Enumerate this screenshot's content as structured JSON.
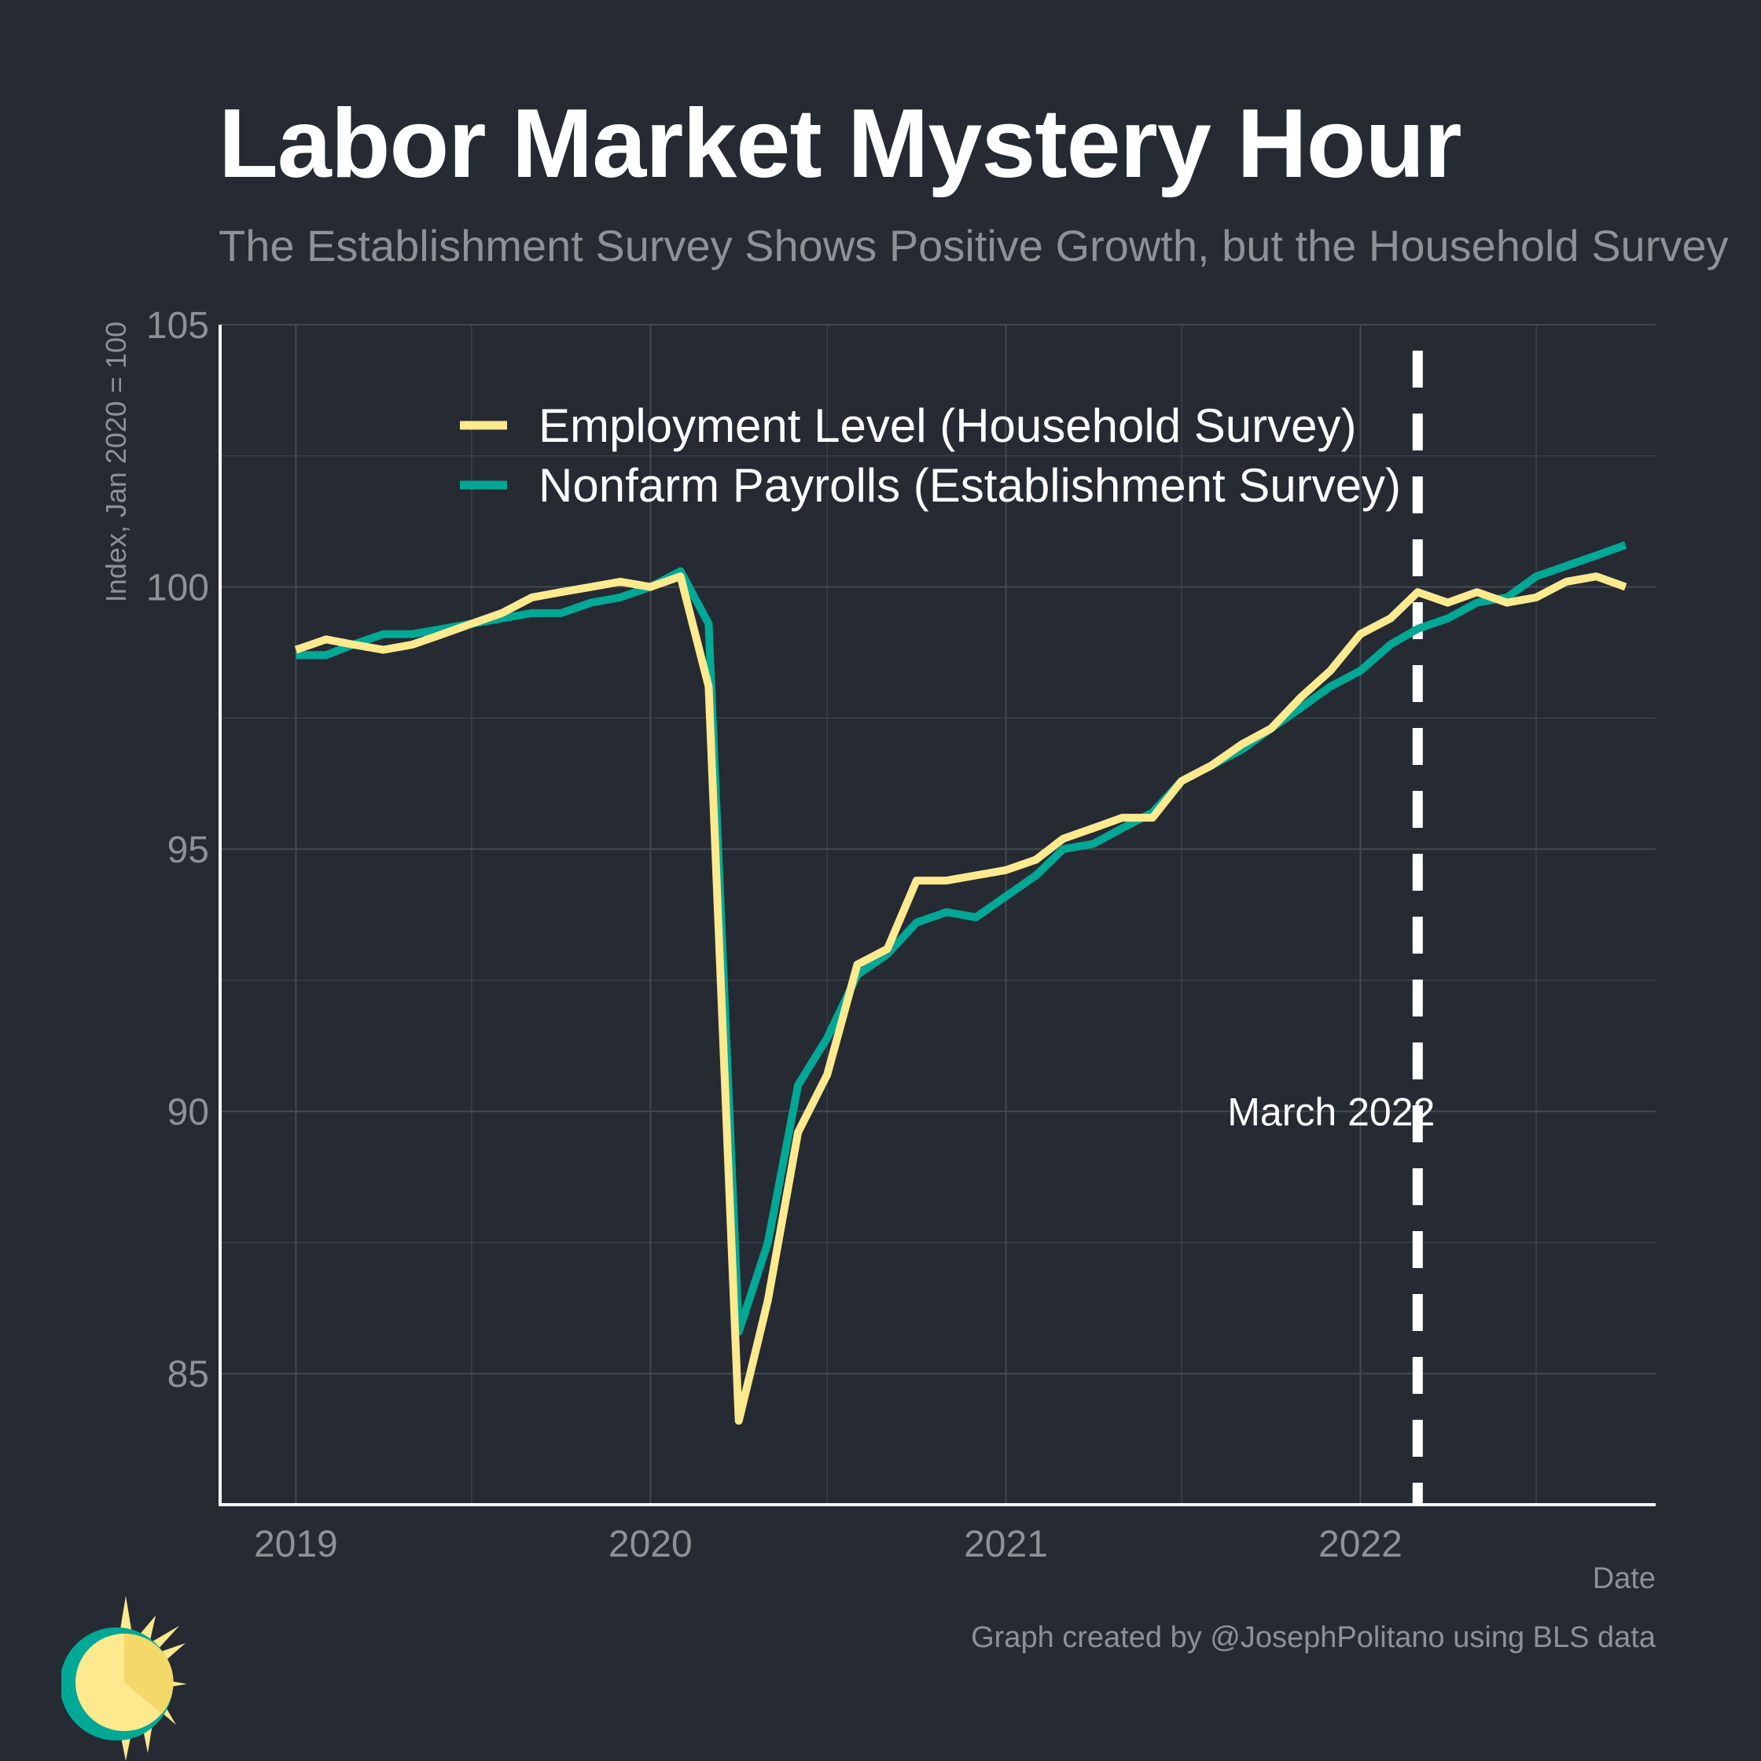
{
  "title": "Labor Market Mystery Hour",
  "subtitle": "The Establishment Survey Shows Positive Growth, but the Household Survey",
  "caption": "Graph created by @JosephPolitano using BLS data",
  "colors": {
    "background": "#252a33",
    "household": "#fde98e",
    "establishment": "#00a896",
    "grid": "#454a52",
    "vline": "#ffffff"
  },
  "chart_data": {
    "type": "line",
    "title": "Labor Market Mystery Hour",
    "subtitle": "The Establishment Survey Shows Positive Growth, but the Household Survey",
    "xlabel": "Date",
    "ylabel": "Index, Jan 2020 = 100",
    "xlim": [
      "2018-10-15",
      "2022-11-01"
    ],
    "ylim": [
      82.5,
      105
    ],
    "x_ticks": [
      "2019",
      "2020",
      "2021",
      "2022"
    ],
    "y_ticks": [
      85,
      90,
      95,
      100,
      105
    ],
    "grid": true,
    "legend_position": "top-center",
    "annotation": {
      "text": "March 2022",
      "x": "2022-03-01",
      "y": 90
    },
    "x": [
      "2019-01",
      "2019-02",
      "2019-03",
      "2019-04",
      "2019-05",
      "2019-06",
      "2019-07",
      "2019-08",
      "2019-09",
      "2019-10",
      "2019-11",
      "2019-12",
      "2020-01",
      "2020-02",
      "2020-03",
      "2020-04",
      "2020-05",
      "2020-06",
      "2020-07",
      "2020-08",
      "2020-09",
      "2020-10",
      "2020-11",
      "2020-12",
      "2021-01",
      "2021-02",
      "2021-03",
      "2021-04",
      "2021-05",
      "2021-06",
      "2021-07",
      "2021-08",
      "2021-09",
      "2021-10",
      "2021-11",
      "2021-12",
      "2022-01",
      "2022-02",
      "2022-03",
      "2022-04",
      "2022-05",
      "2022-06",
      "2022-07",
      "2022-08",
      "2022-09",
      "2022-10"
    ],
    "series": [
      {
        "name": "Employment Level (Household Survey)",
        "color": "#fde98e",
        "values": [
          98.8,
          99.0,
          98.9,
          98.8,
          98.9,
          99.1,
          99.3,
          99.5,
          99.8,
          99.9,
          100.0,
          100.1,
          100.0,
          100.2,
          98.1,
          84.1,
          86.4,
          89.6,
          90.7,
          92.8,
          93.1,
          94.4,
          94.4,
          94.5,
          94.6,
          94.8,
          95.2,
          95.4,
          95.6,
          95.6,
          96.3,
          96.6,
          97.0,
          97.3,
          97.9,
          98.4,
          99.1,
          99.4,
          99.9,
          99.7,
          99.9,
          99.7,
          99.8,
          100.1,
          100.2,
          100.0
        ]
      },
      {
        "name": "Nonfarm Payrolls (Establishment Survey)",
        "color": "#00a896",
        "values": [
          98.7,
          98.7,
          98.9,
          99.1,
          99.1,
          99.2,
          99.3,
          99.4,
          99.5,
          99.5,
          99.7,
          99.8,
          100.0,
          100.3,
          99.3,
          85.8,
          87.5,
          90.5,
          91.4,
          92.6,
          93.0,
          93.6,
          93.8,
          93.7,
          94.1,
          94.5,
          95.0,
          95.1,
          95.4,
          95.7,
          96.3,
          96.6,
          96.9,
          97.3,
          97.7,
          98.1,
          98.4,
          98.9,
          99.2,
          99.4,
          99.7,
          99.8,
          100.2,
          100.4,
          100.6,
          100.8
        ]
      }
    ]
  }
}
